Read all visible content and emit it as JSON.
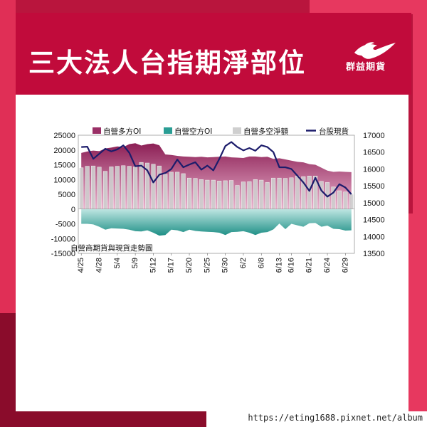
{
  "page": {
    "title": "三大法人台指期淨部位",
    "logo_text": "群益期貨",
    "watermark_url": "https://eting1688.pixnet.net/album",
    "colors": {
      "header": "#c10b3b",
      "frame": "#b9153d",
      "accent_pink": "#e7385f",
      "dark_red": "#8a0c2b"
    }
  },
  "chart_data": {
    "type": "area",
    "inner_label": "自營商期貨與現貨走勢圖",
    "legend_position": "top",
    "grid": false,
    "y_left": {
      "ticks": [
        "25000",
        "20000",
        "15000",
        "10000",
        "5000",
        "0",
        "-5000",
        "-10000",
        "-15000"
      ],
      "range": [
        -15000,
        25000
      ]
    },
    "y_right": {
      "ticks": [
        "17000",
        "16500",
        "16000",
        "15500",
        "15000",
        "14500",
        "14000",
        "13500"
      ],
      "range": [
        13500,
        17000
      ]
    },
    "x_tick_labels": [
      "4/25",
      "4/28",
      "5/4",
      "5/9",
      "5/12",
      "5/17",
      "5/20",
      "5/25",
      "5/30",
      "6/2",
      "6/8",
      "6/13",
      "6/16",
      "6/21",
      "6/24",
      "6/29"
    ],
    "x_tick_index": [
      0,
      3,
      6,
      9,
      12,
      15,
      18,
      21,
      24,
      27,
      30,
      33,
      35,
      38,
      41,
      44
    ],
    "series": [
      {
        "name": "自營多方OI",
        "kind": "area",
        "axis": "left",
        "color": "#a53a72",
        "values": [
          19000,
          19500,
          19800,
          19600,
          20500,
          20800,
          21200,
          21000,
          22000,
          22300,
          21500,
          22000,
          22200,
          21600,
          18500,
          18300,
          18000,
          17800,
          17700,
          17600,
          17700,
          17500,
          17600,
          17700,
          17800,
          17500,
          17400,
          17300,
          17800,
          17800,
          17600,
          17700,
          17000,
          17200,
          16800,
          16400,
          16000,
          15800,
          15200,
          15000,
          14000,
          13000,
          12600,
          12700,
          12600,
          12500
        ]
      },
      {
        "name": "自營空方OI",
        "kind": "area",
        "axis": "left",
        "color": "#2aa39a",
        "values": [
          -5000,
          -5000,
          -5200,
          -6000,
          -7000,
          -6500,
          -6600,
          -6700,
          -7000,
          -7500,
          -7600,
          -7200,
          -8000,
          -9000,
          -8800,
          -7000,
          -7200,
          -7800,
          -7000,
          -7400,
          -7600,
          -7700,
          -7800,
          -8000,
          -8800,
          -7800,
          -7700,
          -7500,
          -8000,
          -8800,
          -8000,
          -7800,
          -6900,
          -4900,
          -6800,
          -5000,
          -5500,
          -6000,
          -4800,
          -4700,
          -6000,
          -5600,
          -6700,
          -6800,
          -7300,
          -7200
        ]
      },
      {
        "name": "自營多空淨額",
        "kind": "bar",
        "axis": "left",
        "color": "#c9c9c9",
        "values": [
          14000,
          14500,
          14600,
          14200,
          12800,
          14300,
          14500,
          14700,
          14500,
          14300,
          15800,
          15600,
          15200,
          14600,
          11800,
          12500,
          12500,
          12000,
          10500,
          10400,
          10000,
          9800,
          9800,
          9500,
          9600,
          9700,
          8000,
          9200,
          9300,
          10000,
          9800,
          9000,
          10500,
          10500,
          10400,
          10600,
          11200,
          11000,
          11200,
          11200,
          9400,
          9000,
          7500,
          6200,
          5800,
          5000
        ]
      },
      {
        "name": "台股現貨",
        "kind": "line",
        "axis": "right",
        "color": "#1c1c6b",
        "values": [
          16650,
          16660,
          16300,
          16450,
          16600,
          16520,
          16580,
          16700,
          16480,
          16080,
          16100,
          15960,
          15600,
          15830,
          15880,
          16000,
          16280,
          16050,
          16130,
          16200,
          15980,
          16100,
          15960,
          16300,
          16680,
          16800,
          16650,
          16550,
          16620,
          16540,
          16700,
          16650,
          16500,
          16050,
          16050,
          16000,
          15800,
          15600,
          15350,
          15740,
          15360,
          15180,
          15300,
          15550,
          15450,
          15250
        ]
      }
    ]
  }
}
